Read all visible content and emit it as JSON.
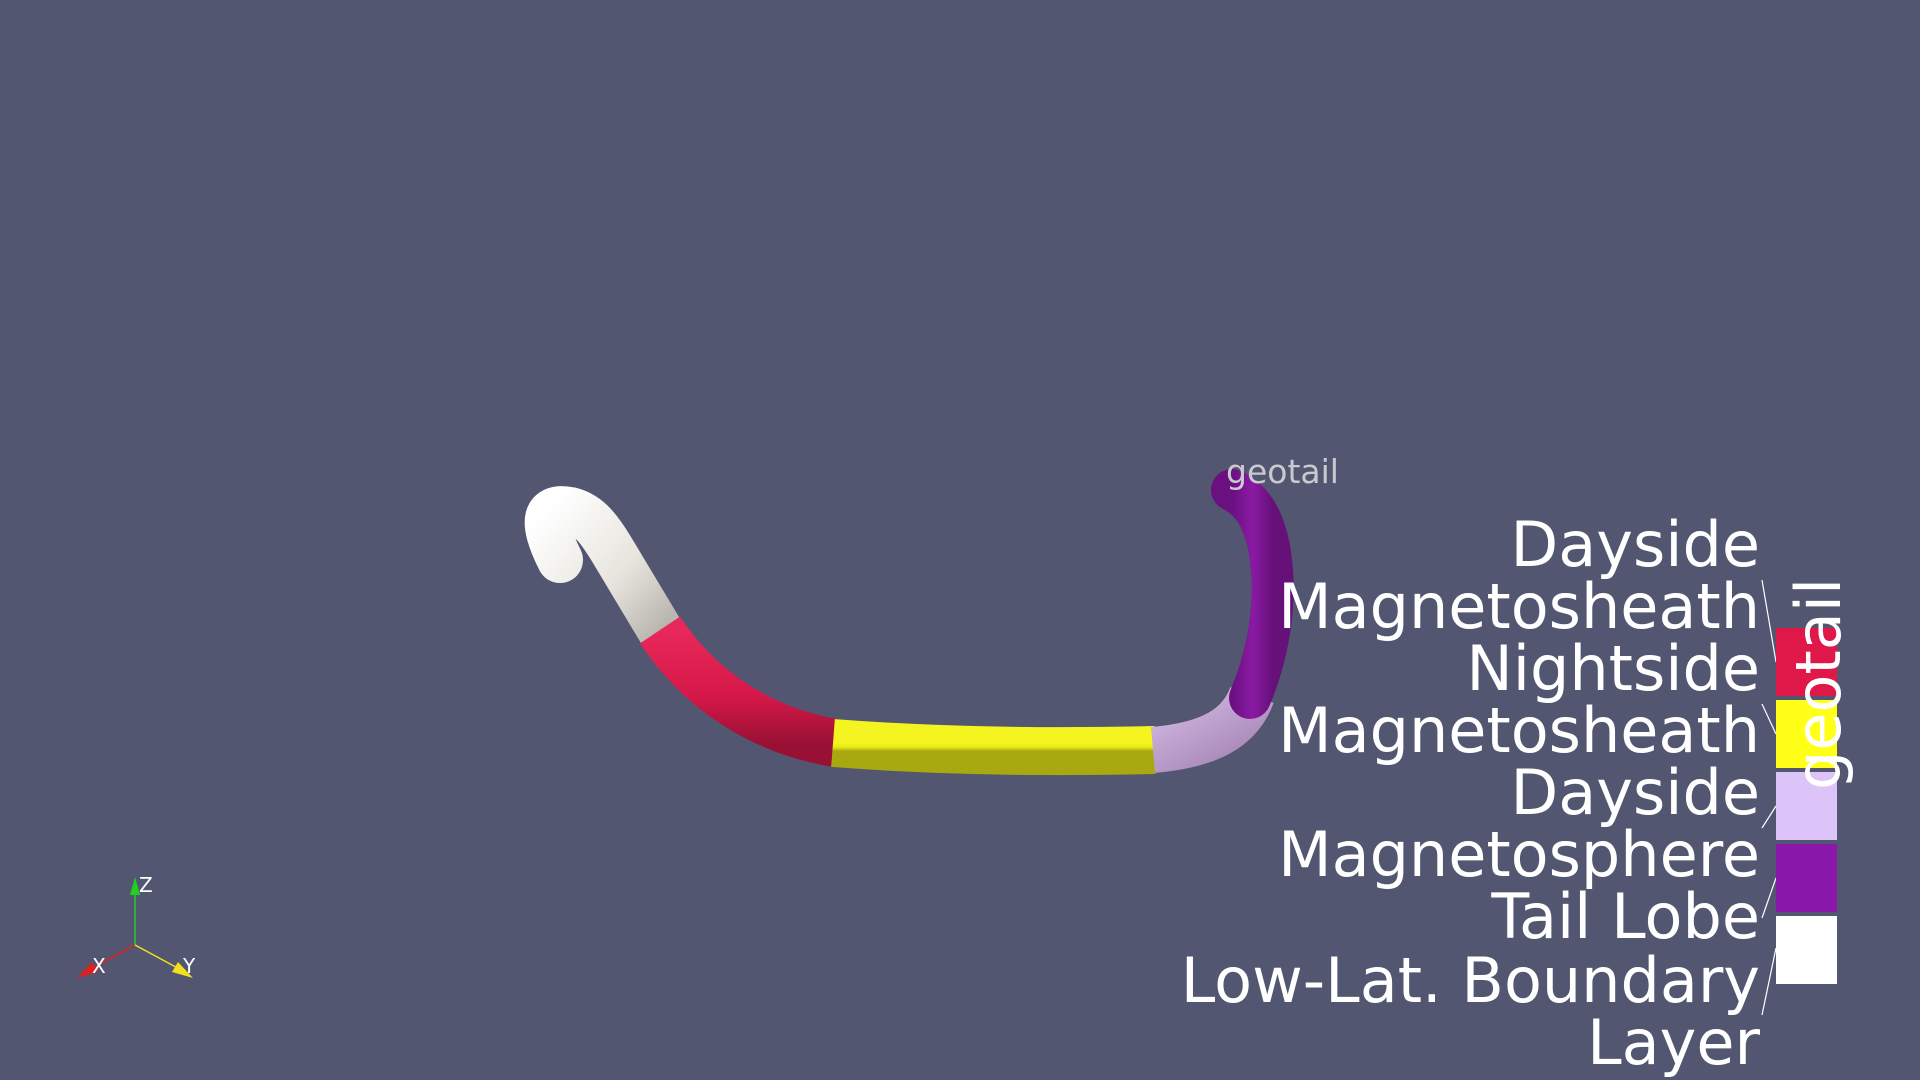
{
  "scene": {
    "background_color": "#525670",
    "actor_label": "geotail"
  },
  "orientation_axes": {
    "x_label": "X",
    "y_label": "Y",
    "z_label": "Z",
    "x_color": "#e02020",
    "y_color": "#f0e020",
    "z_color": "#20d020"
  },
  "legend": {
    "title": "geotail",
    "entries": [
      {
        "lines": [
          "Dayside",
          "Magnetosheath"
        ],
        "color": "#e0184a"
      },
      {
        "lines": [
          "Nightside",
          "Magnetosheath"
        ],
        "color": "#ffff18"
      },
      {
        "lines": [
          "Dayside",
          "Magnetosphere"
        ],
        "color": "#dcc4f8"
      },
      {
        "lines": [
          "Tail Lobe"
        ],
        "color": "#8a18aa"
      },
      {
        "lines": [
          "Low-Lat. Boundary",
          "Layer"
        ],
        "color": "#ffffff"
      }
    ]
  },
  "tube_segments": [
    {
      "region": "Low-Lat. Boundary Layer",
      "color": "#e8e6e0"
    },
    {
      "region": "Dayside Magnetosheath",
      "color": "#d41848"
    },
    {
      "region": "Nightside Magnetosheath",
      "color": "#e8e818"
    },
    {
      "region": "Dayside Magnetosphere",
      "color": "#c8a8d8"
    },
    {
      "region": "Tail Lobe",
      "color": "#7a1490"
    }
  ]
}
